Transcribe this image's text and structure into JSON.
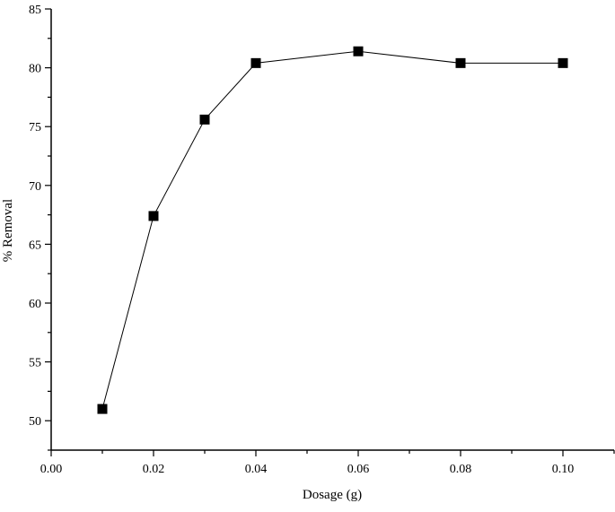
{
  "chart_data": {
    "type": "line",
    "title": "",
    "xlabel": "Dosage (g)",
    "ylabel": "% Removal",
    "xlim": [
      0.0,
      0.11
    ],
    "ylim": [
      47.5,
      85
    ],
    "x_ticks": [
      0.0,
      0.02,
      0.04,
      0.06,
      0.08,
      0.1
    ],
    "x_tick_labels": [
      "0.00",
      "0.02",
      "0.04",
      "0.06",
      "0.08",
      "0.10"
    ],
    "y_ticks": [
      50,
      55,
      60,
      65,
      70,
      75,
      80,
      85
    ],
    "y_tick_labels": [
      "50",
      "55",
      "60",
      "65",
      "70",
      "75",
      "80",
      "85"
    ],
    "grid": false,
    "legend": "none",
    "marker": "filled-square",
    "colors": {
      "line": "#000000",
      "marker": "#000000",
      "axis": "#000000"
    },
    "series": [
      {
        "x": [
          0.01,
          0.02,
          0.03,
          0.04,
          0.06,
          0.08,
          0.1
        ],
        "y": [
          51.0,
          67.4,
          75.6,
          80.4,
          81.4,
          80.4,
          80.4
        ]
      }
    ]
  }
}
